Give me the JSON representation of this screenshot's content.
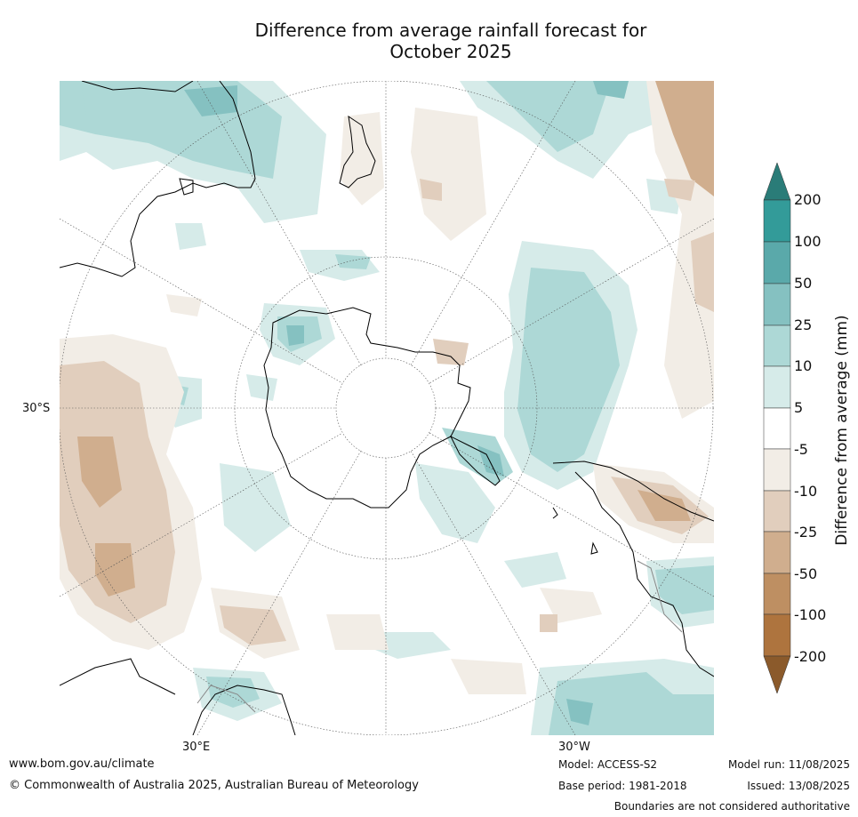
{
  "title": {
    "line1": "Difference from average rainfall forecast for",
    "line2": "October 2025"
  },
  "map": {
    "projection": "south-polar-stereographic",
    "lat_labels": [
      {
        "text": "30°S"
      }
    ],
    "lon_labels": [
      {
        "text": "30°E"
      },
      {
        "text": "30°W"
      }
    ],
    "continents": [
      "Australia",
      "New Zealand",
      "Antarctica",
      "South America",
      "Africa"
    ]
  },
  "colorbar": {
    "title": "Difference from average (mm)",
    "ticks": [
      "200",
      "100",
      "50",
      "25",
      "10",
      "5",
      "-5",
      "-10",
      "-25",
      "-50",
      "-100",
      "-200"
    ],
    "colors": {
      "above_200": "#2a7c78",
      "100_200": "#339b99",
      "50_100": "#5aa9aa",
      "25_50": "#85c1c1",
      "10_25": "#add8d6",
      "5_10": "#d6ebe9",
      "neutral": "#ffffff",
      "neg5_neg10": "#f2ede6",
      "neg10_neg25": "#e1cebd",
      "neg25_neg50": "#d0ae8e",
      "neg50_neg100": "#be8f62",
      "neg100_neg200": "#ae743e",
      "below_neg200": "#8b5a2b"
    }
  },
  "footer": {
    "website": "www.bom.gov.au/climate",
    "copyright": "© Commonwealth of Australia 2025, Australian Bureau of Meteorology",
    "model": "Model: ACCESS-S2",
    "base_period": "Base period: 1981-2018",
    "model_run": "Model run: 11/08/2025",
    "issued": "Issued: 13/08/2025",
    "disclaimer": "Boundaries are not considered authoritative"
  }
}
